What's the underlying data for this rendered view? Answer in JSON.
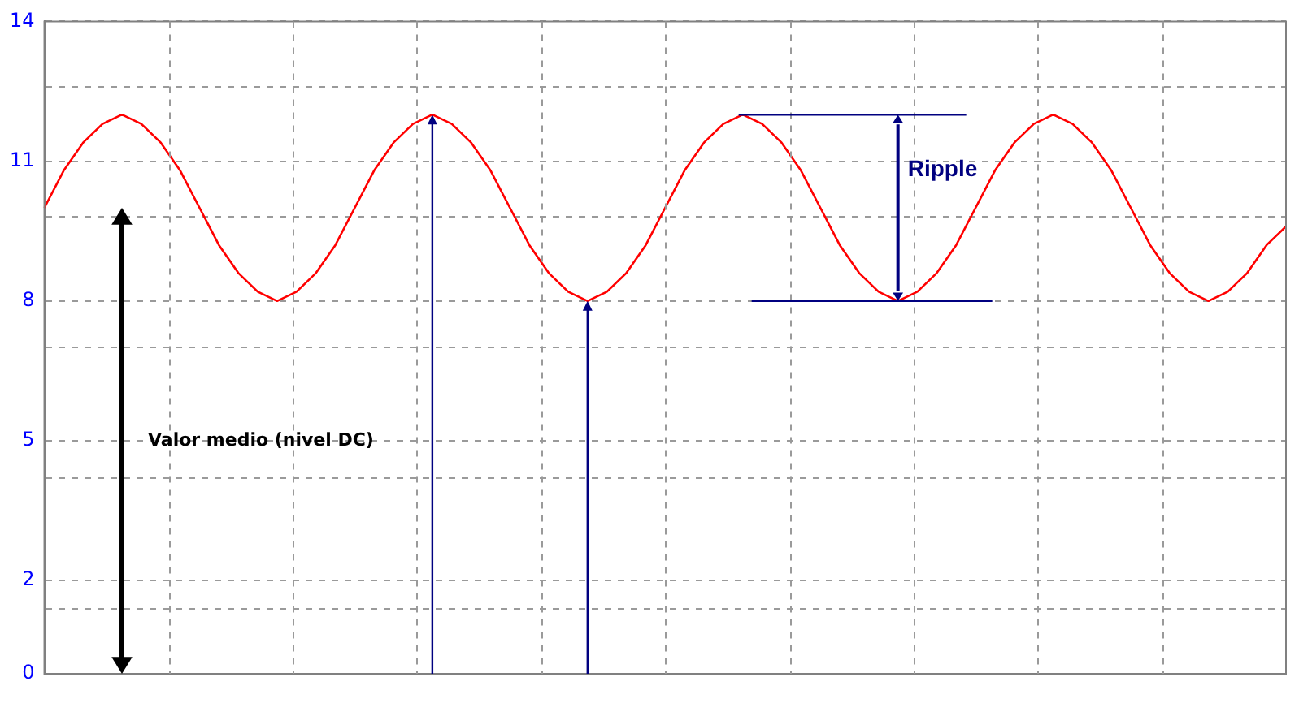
{
  "chart_data": {
    "type": "line",
    "categories": [
      null,
      null,
      null,
      null,
      null,
      null,
      null,
      null,
      null,
      null,
      null,
      null,
      null,
      null,
      null,
      null,
      null,
      null,
      null,
      null,
      null,
      null,
      null,
      null,
      null,
      null,
      null,
      null,
      null,
      null,
      null,
      null,
      null,
      null,
      null,
      null,
      null,
      null,
      null,
      null,
      null,
      null,
      null,
      null,
      null,
      null,
      null,
      null,
      null,
      null,
      null,
      null,
      null,
      null,
      null,
      null,
      null,
      null,
      null,
      null,
      null,
      null,
      null,
      null,
      null
    ],
    "series": [
      {
        "color": "#ff0000",
        "values": [
          10,
          10.8,
          11.4,
          11.8,
          12,
          11.8,
          11.4,
          10.8,
          10,
          9.2,
          8.6,
          8.2,
          8,
          8.2,
          8.6,
          9.2,
          10,
          10.8,
          11.4,
          11.8,
          12,
          11.8,
          11.4,
          10.8,
          10,
          9.2,
          8.6,
          8.2,
          8,
          8.2,
          8.6,
          9.2,
          10,
          10.8,
          11.4,
          11.8,
          12,
          11.8,
          11.4,
          10.8,
          10,
          9.2,
          8.6,
          8.2,
          8,
          8.2,
          8.6,
          9.2,
          10,
          10.8,
          11.4,
          11.8,
          12,
          11.8,
          11.4,
          10.8,
          10,
          9.2,
          8.6,
          8.2,
          8,
          8.2,
          8.6,
          9.2,
          9.6
        ]
      }
    ],
    "ylim": [
      0,
      14
    ],
    "yticks": [
      0,
      {
        "value": 1.4,
        "label": null
      },
      2,
      {
        "value": 4.2,
        "label": null
      },
      5,
      {
        "value": 7,
        "label": null
      },
      8,
      {
        "value": 9.8,
        "label": null
      },
      11,
      {
        "value": 12.6,
        "label": null
      },
      14
    ],
    "tick_labels": "y",
    "grid": true,
    "legend": false,
    "marker": "none",
    "line_style": "solid",
    "annotations": [
      "Valor medio (nivel DC)",
      "Ripple"
    ],
    "ref_lines": [
      {
        "axis": "y",
        "value": 12,
        "color": "#000080"
      },
      {
        "axis": "y",
        "value": 8,
        "color": "#000080"
      }
    ]
  }
}
